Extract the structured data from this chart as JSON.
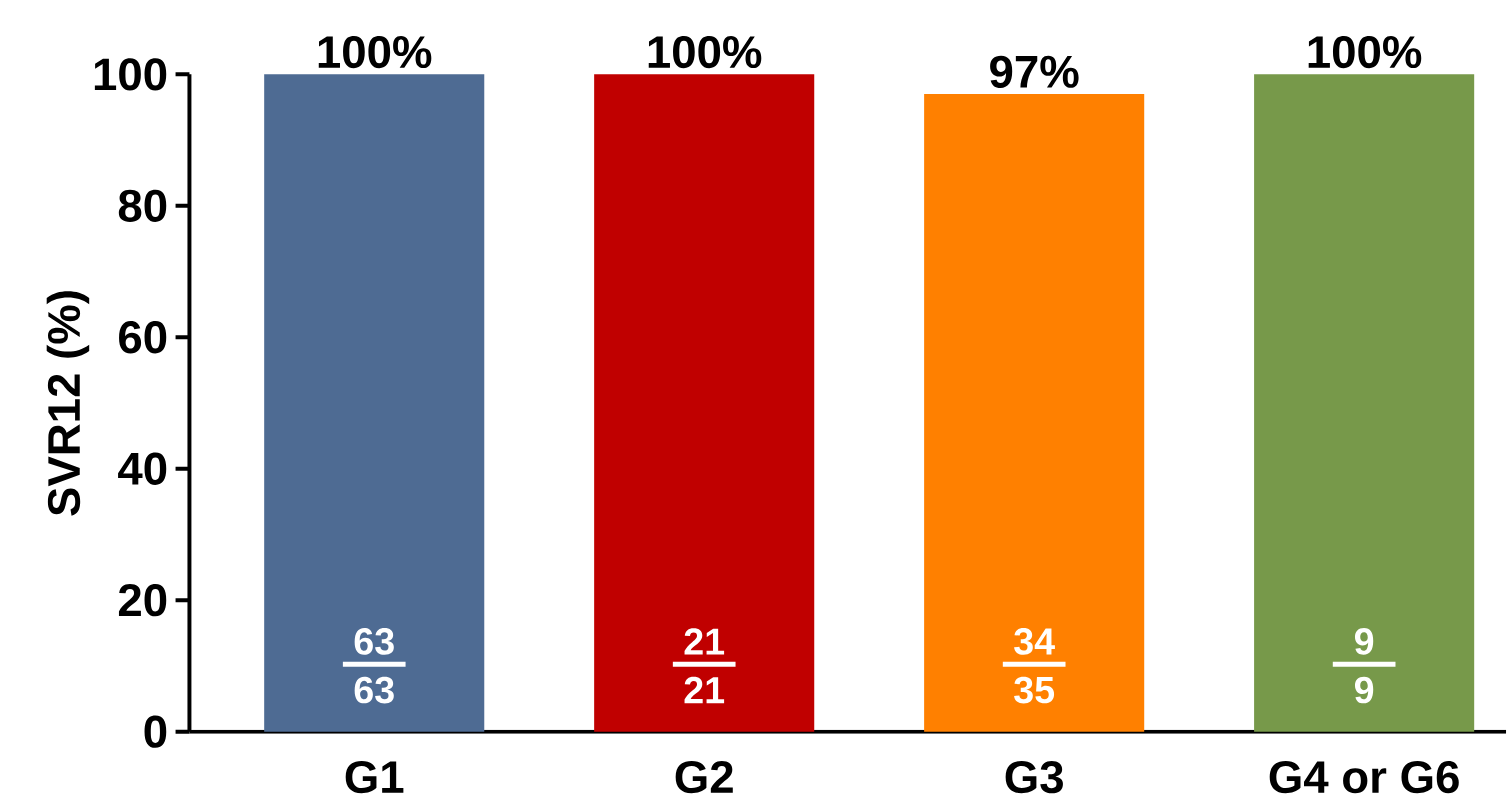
{
  "chart_data": {
    "type": "bar",
    "ylabel": "SVR12 (%)",
    "categories": [
      "G1",
      "G2",
      "G3",
      "G4 or G6"
    ],
    "values": [
      100,
      100,
      97,
      100
    ],
    "colors": [
      "#4e6b93",
      "#c00000",
      "#ff8000",
      "#77994a"
    ],
    "value_labels": [
      "100%",
      "100%",
      "97%",
      "100%"
    ],
    "ylim": [
      0,
      100
    ],
    "yticks": [
      0,
      20,
      40,
      60,
      80,
      100
    ],
    "grid": false,
    "annotations": [
      "63",
      "63",
      "21",
      "21",
      "34",
      "35",
      "9",
      "9"
    ]
  }
}
